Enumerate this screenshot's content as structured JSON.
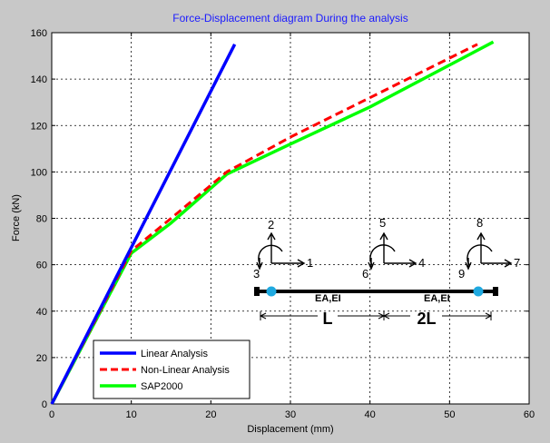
{
  "chart_data": {
    "type": "line",
    "title": "Force-Displacement diagram During the analysis",
    "xlabel": "Displacement (mm)",
    "ylabel": "Force (kN)",
    "xlim": [
      0,
      60
    ],
    "ylim": [
      0,
      160
    ],
    "xticks": [
      0,
      10,
      20,
      30,
      40,
      50,
      60
    ],
    "yticks": [
      0,
      20,
      40,
      60,
      80,
      100,
      120,
      140,
      160
    ],
    "grid": true,
    "legend_position": "bottom-left",
    "series": [
      {
        "name": "Linear Analysis",
        "color": "#0000ff",
        "dash": "solid",
        "x": [
          0,
          23
        ],
        "y": [
          0,
          155
        ]
      },
      {
        "name": "Non-Linear Analysis",
        "color": "#ff0000",
        "dash": "dashed",
        "x": [
          0,
          10,
          15,
          22,
          30,
          40,
          53.5
        ],
        "y": [
          0,
          66,
          80,
          100,
          115,
          132,
          155
        ]
      },
      {
        "name": "SAP2000",
        "color": "#00ff00",
        "dash": "solid",
        "x": [
          0,
          10,
          15,
          22,
          30,
          40,
          55.5
        ],
        "y": [
          0,
          65,
          78,
          99,
          112,
          128,
          156
        ]
      }
    ]
  },
  "inset": {
    "dofs": [
      "1",
      "2",
      "3",
      "4",
      "5",
      "6",
      "7",
      "8",
      "9"
    ],
    "span1": "L",
    "span2": "2L",
    "prop1": "EA,EI",
    "prop2": "EA,EI"
  }
}
